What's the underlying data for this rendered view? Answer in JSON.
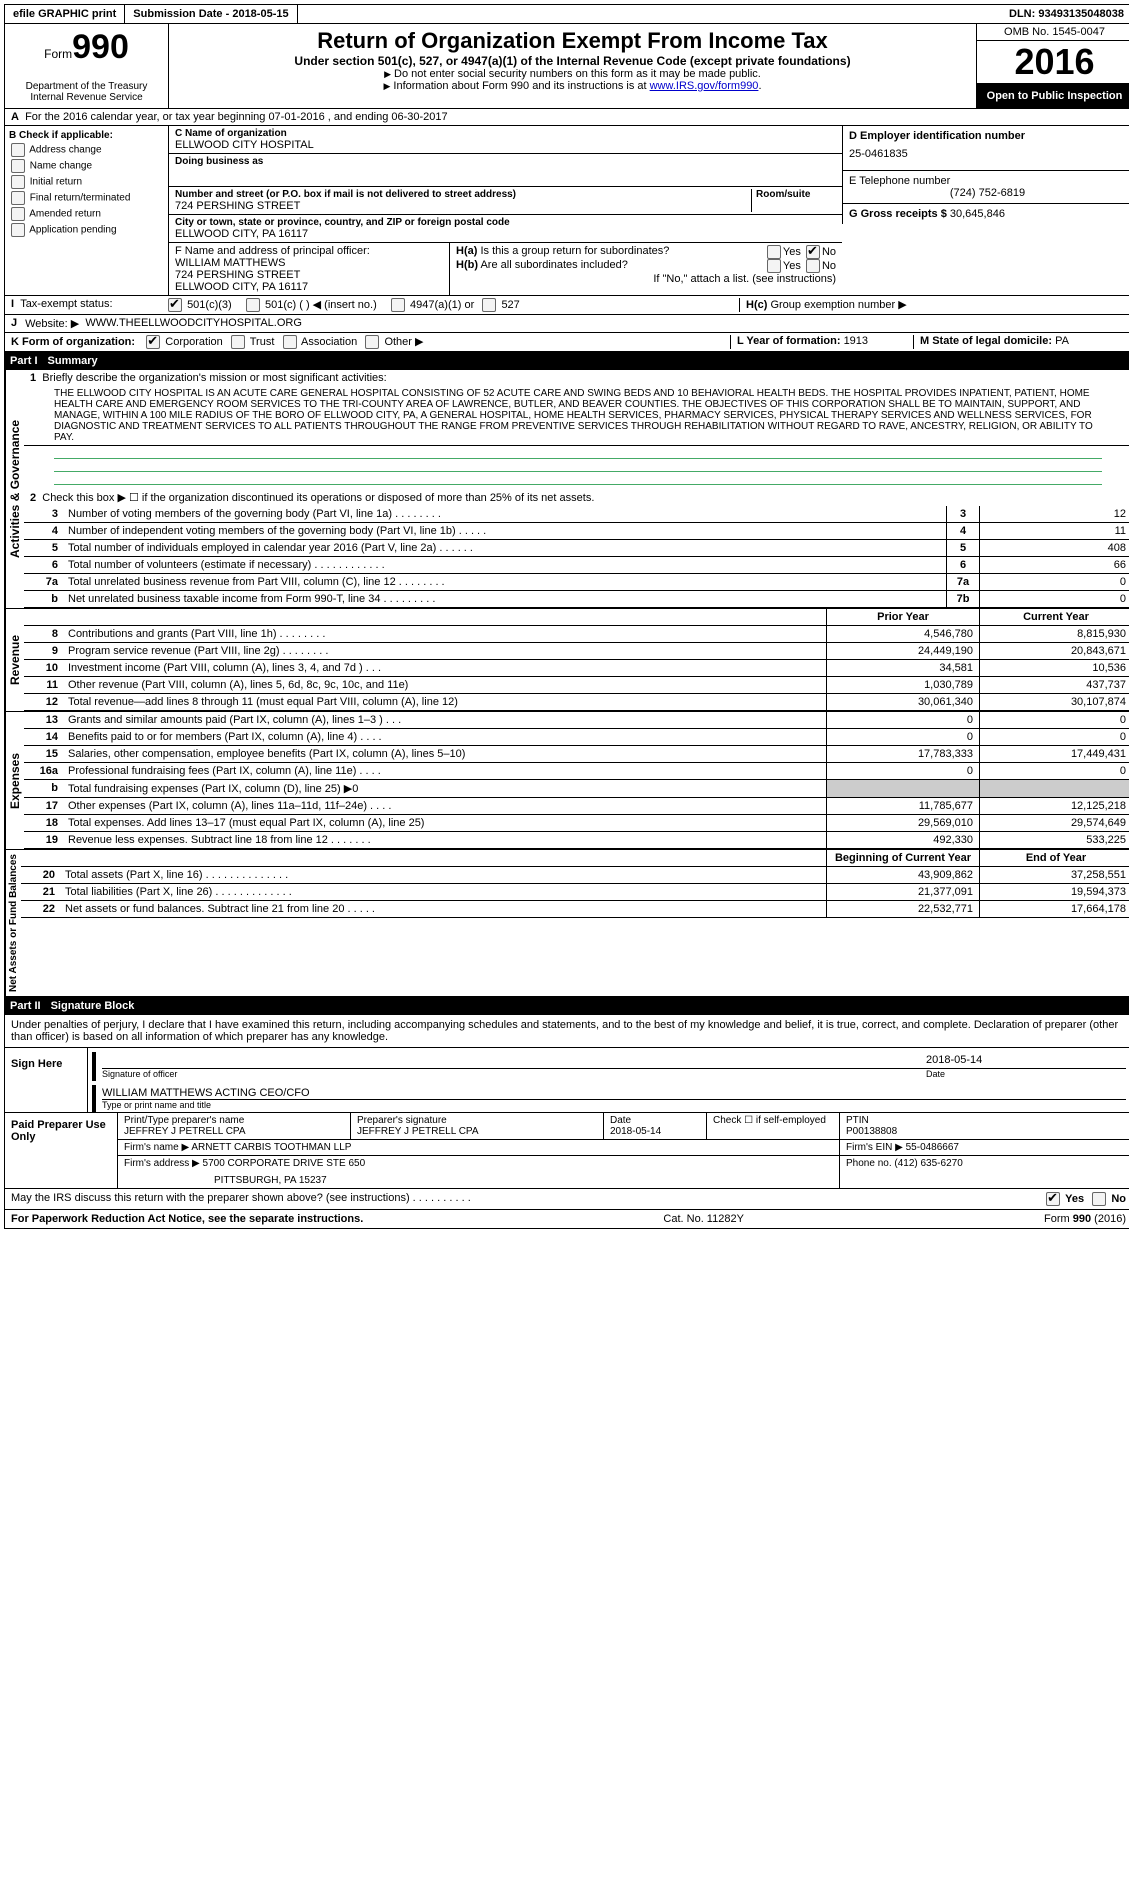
{
  "top": {
    "efile": "efile GRAPHIC print",
    "sub_date_label": "Submission Date - ",
    "sub_date": "2018-05-15",
    "dln_label": "DLN: ",
    "dln": "93493135048038"
  },
  "header": {
    "form_word": "Form",
    "form_num": "990",
    "dept1": "Department of the Treasury",
    "dept2": "Internal Revenue Service",
    "title": "Return of Organization Exempt From Income Tax",
    "subtitle": "Under section 501(c), 527, or 4947(a)(1) of the Internal Revenue Code (except private foundations)",
    "note1": "Do not enter social security numbers on this form as it may be made public.",
    "note2": "Information about Form 990 and its instructions is at ",
    "link": "www.IRS.gov/form990",
    "omb": "OMB No. 1545-0047",
    "year": "2016",
    "open": "Open to Public Inspection"
  },
  "a": {
    "text": "For the 2016 calendar year, or tax year beginning 07-01-2016   , and ending 06-30-2017"
  },
  "b": {
    "header": "Check if applicable:",
    "items": [
      "Address change",
      "Name change",
      "Initial return",
      "Final return/terminated",
      "Amended return",
      "Application pending"
    ]
  },
  "c": {
    "name_label": "C Name of organization",
    "name": "ELLWOOD CITY HOSPITAL",
    "dba_label": "Doing business as",
    "addr_label": "Number and street (or P.O. box if mail is not delivered to street address)",
    "room_label": "Room/suite",
    "addr": "724 PERSHING STREET",
    "city_label": "City or town, state or province, country, and ZIP or foreign postal code",
    "city": "ELLWOOD CITY, PA  16117"
  },
  "d": {
    "label": "D Employer identification number",
    "val": "25-0461835"
  },
  "e": {
    "label": "E Telephone number",
    "val": "(724) 752-6819"
  },
  "g": {
    "label": "G Gross receipts $ ",
    "val": "30,645,846"
  },
  "f": {
    "label": "F  Name and address of principal officer:",
    "name": "WILLIAM MATTHEWS",
    "addr1": "724 PERSHING STREET",
    "addr2": "ELLWOOD CITY, PA  16117"
  },
  "h": {
    "a": "Is this a group return for subordinates?",
    "b": "Are all subordinates included?",
    "note": "If \"No,\" attach a list. (see instructions)",
    "c": "Group exemption number ▶"
  },
  "i": {
    "label": "Tax-exempt status:",
    "o1": "501(c)(3)",
    "o2": "501(c) (   ) ◀ (insert no.)",
    "o3": "4947(a)(1) or",
    "o4": "527"
  },
  "j": {
    "label": "Website: ▶",
    "val": "WWW.THEELLWOODCITYHOSPITAL.ORG"
  },
  "k": {
    "label": "K Form of organization:",
    "opts": [
      "Corporation",
      "Trust",
      "Association",
      "Other ▶"
    ]
  },
  "l": {
    "label": "L Year of formation: ",
    "val": "1913"
  },
  "m": {
    "label": "M State of legal domicile: ",
    "val": "PA"
  },
  "part1": {
    "num": "Part I",
    "title": "Summary",
    "q1_label": "Briefly describe the organization's mission or most significant activities:",
    "q1": "THE ELLWOOD CITY HOSPITAL IS AN ACUTE CARE GENERAL HOSPITAL CONSISTING OF 52 ACUTE CARE AND SWING BEDS AND 10 BEHAVIORAL HEALTH BEDS. THE HOSPITAL PROVIDES INPATIENT, PATIENT, HOME HEALTH CARE AND EMERGENCY ROOM SERVICES TO THE TRI-COUNTY AREA OF LAWRENCE, BUTLER, AND BEAVER COUNTIES. THE OBJECTIVES OF THIS CORPORATION SHALL BE TO MAINTAIN, SUPPORT, AND MANAGE, WITHIN A 100 MILE RADIUS OF THE BORO OF ELLWOOD CITY, PA, A GENERAL HOSPITAL, HOME HEALTH SERVICES, PHARMACY SERVICES, PHYSICAL THERAPY SERVICES AND WELLNESS SERVICES, FOR DIAGNOSTIC AND TREATMENT SERVICES TO ALL PATIENTS THROUGHOUT THE RANGE FROM PREVENTIVE SERVICES THROUGH REHABILITATION WITHOUT REGARD TO RAVE, ANCESTRY, RELIGION, OR ABILITY TO PAY.",
    "q2": "Check this box ▶ ☐  if the organization discontinued its operations or disposed of more than 25% of its net assets.",
    "vert_act": "Activities & Governance",
    "vert_rev": "Revenue",
    "vert_exp": "Expenses",
    "vert_net": "Net Assets or Fund Balances"
  },
  "lines_gov": [
    {
      "n": "3",
      "d": "Number of voting members of the governing body (Part VI, line 1a)   .    .    .    .    .    .    .    .",
      "box": "3",
      "v": "12"
    },
    {
      "n": "4",
      "d": "Number of independent voting members of the governing body (Part VI, line 1b)    .    .    .    .    .",
      "box": "4",
      "v": "11"
    },
    {
      "n": "5",
      "d": "Total number of individuals employed in calendar year 2016 (Part V, line 2a)    .    .    .    .    .    .",
      "box": "5",
      "v": "408"
    },
    {
      "n": "6",
      "d": "Total number of volunteers (estimate if necessary)   .    .    .    .    .    .    .    .    .    .    .    .",
      "box": "6",
      "v": "66"
    },
    {
      "n": "7a",
      "d": "Total unrelated business revenue from Part VIII, column (C), line 12   .    .    .    .    .    .    .    .",
      "box": "7a",
      "v": "0"
    },
    {
      "n": "b",
      "d": "Net unrelated business taxable income from Form 990-T, line 34   .    .    .    .    .    .    .    .    .",
      "box": "7b",
      "v": "0"
    }
  ],
  "hdr_prior": "Prior Year",
  "hdr_curr": "Current Year",
  "lines_rev": [
    {
      "n": "8",
      "d": "Contributions and grants (Part VIII, line 1h)   .    .    .    .    .    .    .    .",
      "p": "4,546,780",
      "c": "8,815,930"
    },
    {
      "n": "9",
      "d": "Program service revenue (Part VIII, line 2g)   .    .    .    .    .    .    .    .",
      "p": "24,449,190",
      "c": "20,843,671"
    },
    {
      "n": "10",
      "d": "Investment income (Part VIII, column (A), lines 3, 4, and 7d )   .    .    .",
      "p": "34,581",
      "c": "10,536"
    },
    {
      "n": "11",
      "d": "Other revenue (Part VIII, column (A), lines 5, 6d, 8c, 9c, 10c, and 11e)",
      "p": "1,030,789",
      "c": "437,737"
    },
    {
      "n": "12",
      "d": "Total revenue—add lines 8 through 11 (must equal Part VIII, column (A), line 12)",
      "p": "30,061,340",
      "c": "30,107,874"
    }
  ],
  "lines_exp": [
    {
      "n": "13",
      "d": "Grants and similar amounts paid (Part IX, column (A), lines 1–3 )   .    .    .",
      "p": "0",
      "c": "0"
    },
    {
      "n": "14",
      "d": "Benefits paid to or for members (Part IX, column (A), line 4)   .    .    .    .",
      "p": "0",
      "c": "0"
    },
    {
      "n": "15",
      "d": "Salaries, other compensation, employee benefits (Part IX, column (A), lines 5–10)",
      "p": "17,783,333",
      "c": "17,449,431"
    },
    {
      "n": "16a",
      "d": "Professional fundraising fees (Part IX, column (A), line 11e)   .    .    .    .",
      "p": "0",
      "c": "0"
    },
    {
      "n": "b",
      "d": "Total fundraising expenses (Part IX, column (D), line 25) ▶0",
      "p": "",
      "c": "",
      "shaded": true
    },
    {
      "n": "17",
      "d": "Other expenses (Part IX, column (A), lines 11a–11d, 11f–24e)   .    .    .    .",
      "p": "11,785,677",
      "c": "12,125,218"
    },
    {
      "n": "18",
      "d": "Total expenses. Add lines 13–17 (must equal Part IX, column (A), line 25)",
      "p": "29,569,010",
      "c": "29,574,649"
    },
    {
      "n": "19",
      "d": "Revenue less expenses. Subtract line 18 from line 12   .    .    .    .    .    .    .",
      "p": "492,330",
      "c": "533,225"
    }
  ],
  "hdr_beg": "Beginning of Current Year",
  "hdr_end": "End of Year",
  "lines_net": [
    {
      "n": "20",
      "d": "Total assets (Part X, line 16)   .    .    .    .    .    .    .    .    .    .    .    .    .    .",
      "p": "43,909,862",
      "c": "37,258,551"
    },
    {
      "n": "21",
      "d": "Total liabilities (Part X, line 26)   .    .    .    .    .    .    .    .    .    .    .    .    .",
      "p": "21,377,091",
      "c": "19,594,373"
    },
    {
      "n": "22",
      "d": "Net assets or fund balances. Subtract line 21 from line 20   .    .    .    .    .",
      "p": "22,532,771",
      "c": "17,664,178"
    }
  ],
  "part2": {
    "num": "Part II",
    "title": "Signature Block",
    "decl": "Under penalties of perjury, I declare that I have examined this return, including accompanying schedules and statements, and to the best of my knowledge and belief, it is true, correct, and complete. Declaration of preparer (other than officer) is based on all information of which preparer has any knowledge."
  },
  "sign": {
    "here": "Sign Here",
    "sig_label": "Signature of officer",
    "date_label": "Date",
    "date": "2018-05-14",
    "name": "WILLIAM MATTHEWS  ACTING CEO/CFO",
    "name_label": "Type or print name and title"
  },
  "prep": {
    "label": "Paid Preparer Use Only",
    "name_label": "Print/Type preparer's name",
    "name": "JEFFREY J PETRELL CPA",
    "sig_label": "Preparer's signature",
    "sig": "JEFFREY J PETRELL CPA",
    "date_label": "Date",
    "date": "2018-05-14",
    "check_label": "Check ☐ if self-employed",
    "ptin_label": "PTIN",
    "ptin": "P00138808",
    "firm_name_label": "Firm's name      ▶ ",
    "firm_name": "ARNETT CARBIS TOOTHMAN LLP",
    "ein_label": "Firm's EIN ▶ ",
    "ein": "55-0486667",
    "addr_label": "Firm's address ▶ ",
    "addr": "5700 CORPORATE DRIVE STE 650",
    "addr2": "PITTSBURGH, PA  15237",
    "phone_label": "Phone no. ",
    "phone": "(412) 635-6270"
  },
  "discuss": "May the IRS discuss this return with the preparer shown above? (see instructions)   .    .    .    .    .    .    .    .    .    .",
  "footer": {
    "left": "For Paperwork Reduction Act Notice, see the separate instructions.",
    "mid": "Cat. No. 11282Y",
    "right": "Form 990 (2016)"
  }
}
